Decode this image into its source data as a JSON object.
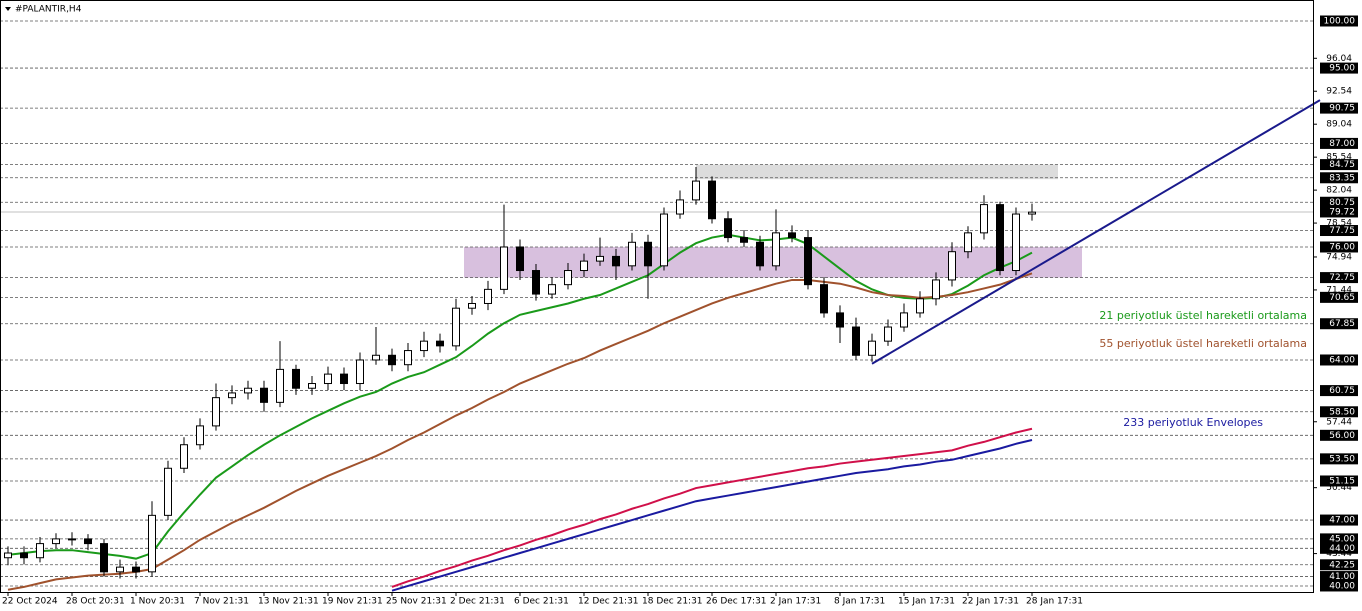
{
  "chart_data": {
    "type": "candlestick",
    "title": "#PALANTIR,H4",
    "categories": [
      "22 Oct 2024",
      null,
      null,
      null,
      "28 Oct 20:31",
      null,
      null,
      null,
      "1 Nov 20:31",
      null,
      null,
      null,
      "7 Nov 21:31",
      null,
      null,
      null,
      "13 Nov 21:31",
      null,
      null,
      null,
      "19 Nov 21:31",
      null,
      null,
      null,
      "25 Nov 21:31",
      null,
      null,
      null,
      "2 Dec 21:31",
      null,
      null,
      null,
      "6 Dec 21:31",
      null,
      null,
      null,
      "12 Dec 21:31",
      null,
      null,
      null,
      "18 Dec 21:31",
      null,
      null,
      null,
      "26 Dec 17:31",
      null,
      null,
      null,
      "2 Jan 17:31",
      null,
      null,
      null,
      "8 Jan 17:31",
      null,
      null,
      null,
      "15 Jan 17:31",
      null,
      null,
      null,
      "22 Jan 17:31",
      null,
      null,
      null,
      "28 Jan 17:31"
    ],
    "open": [
      43,
      43.5,
      43,
      44.5,
      45,
      45,
      44.5,
      41.5,
      42,
      41.5,
      47.5,
      52.5,
      55,
      57,
      60,
      60.5,
      61,
      59.5,
      63,
      61,
      61.5,
      62.5,
      61.5,
      64,
      64.5,
      63.5,
      65,
      66,
      65.5,
      69.5,
      70,
      71.5,
      76,
      73.5,
      71,
      72,
      73.5,
      74.5,
      75,
      74,
      76.5,
      74,
      79.5,
      81,
      83,
      79,
      77,
      76.5,
      74,
      77.5,
      77,
      72,
      69,
      67.5,
      64.5,
      66,
      67.5,
      69,
      70.5,
      72.5,
      75.5,
      77.5,
      80.5,
      73.5,
      79.5
    ],
    "high": [
      44.2,
      44.2,
      45.2,
      45.6,
      45.7,
      45.5,
      45,
      42.8,
      42.6,
      49,
      53.3,
      55.8,
      57.8,
      61.5,
      61.3,
      61.8,
      61.8,
      66,
      63.5,
      62.3,
      63.3,
      63.2,
      64.8,
      67.5,
      65.2,
      65.8,
      67,
      66.8,
      70.5,
      70.8,
      72.4,
      80.5,
      76.8,
      74.2,
      72.8,
      74.3,
      75.3,
      77,
      75.8,
      77.5,
      77.3,
      80.2,
      82,
      84.5,
      83.5,
      79.8,
      77.8,
      77.2,
      80,
      78.3,
      77.8,
      72.8,
      69.8,
      68.5,
      66.8,
      68.3,
      70,
      71.3,
      73.3,
      76.5,
      78.2,
      81.5,
      80.8,
      80.2,
      80.6
    ],
    "low": [
      42.2,
      42.3,
      42.5,
      44,
      44.3,
      43.8,
      41,
      40.8,
      40.8,
      41,
      47,
      52,
      54.5,
      56.5,
      59.3,
      59.8,
      58.5,
      59,
      60.3,
      60.3,
      60.8,
      60.8,
      60.8,
      63.5,
      62.8,
      62.8,
      64.3,
      64.8,
      65,
      68.8,
      69.3,
      71,
      72.5,
      70.3,
      70.5,
      71.5,
      72.8,
      74,
      72.5,
      73.5,
      70.5,
      73.5,
      79,
      80.5,
      78.5,
      76.5,
      76,
      73.5,
      73.5,
      76.5,
      71.5,
      68.5,
      65.8,
      64,
      63.8,
      65.5,
      67,
      68.5,
      69.8,
      71.8,
      74.8,
      76.8,
      73,
      73,
      78.8
    ],
    "close": [
      43.5,
      43,
      44.5,
      45,
      45,
      44.5,
      41.5,
      42,
      41.5,
      47.5,
      52.5,
      55,
      57,
      60,
      60.5,
      61,
      59.5,
      63,
      61,
      61.5,
      62.5,
      61.5,
      64,
      64.5,
      63.5,
      65,
      66,
      65.5,
      69.5,
      70,
      71.5,
      76,
      73.5,
      71,
      72,
      73.5,
      74.5,
      75,
      74,
      76.5,
      74,
      79.5,
      81,
      83,
      79,
      77,
      76.5,
      74,
      77.5,
      77,
      72,
      69,
      67.5,
      64.5,
      66,
      67.5,
      69,
      70.5,
      72.5,
      75.5,
      77.5,
      80.5,
      73.5,
      79.5,
      79.7
    ],
    "series": [
      {
        "name": "21 periyotluk üstel hareketli ortalama",
        "color": "#1a9a1a",
        "values": [
          43.3,
          43.5,
          43.7,
          43.8,
          43.8,
          43.6,
          43.4,
          43.2,
          42.9,
          43.5,
          45.8,
          47.8,
          49.7,
          51.5,
          52.7,
          53.9,
          55,
          56,
          56.9,
          57.8,
          58.6,
          59.4,
          60.1,
          60.6,
          61.5,
          62.2,
          62.7,
          63.5,
          64.3,
          65.5,
          66.8,
          67.9,
          68.8,
          69.2,
          69.6,
          70,
          70.5,
          70.9,
          71.6,
          72.3,
          73,
          74.2,
          75.4,
          76.4,
          77,
          77.3,
          77,
          76.7,
          76.8,
          77,
          76.3,
          75,
          73.7,
          72.4,
          71.5,
          70.9,
          70.6,
          70.5,
          70.6,
          71,
          71.9,
          73,
          73.8,
          74.5,
          75.4
        ]
      },
      {
        "name": "55 periyotluk üstel hareketli ortalama",
        "color": "#a0522d",
        "values": [
          39.6,
          39.9,
          40.3,
          40.7,
          40.9,
          41.1,
          41.2,
          41.3,
          41.5,
          41.8,
          42.8,
          43.8,
          44.9,
          45.8,
          46.7,
          47.5,
          48.3,
          49.2,
          50.1,
          50.9,
          51.7,
          52.4,
          53.1,
          53.8,
          54.6,
          55.5,
          56.3,
          57.2,
          58.1,
          58.9,
          59.8,
          60.6,
          61.5,
          62.2,
          62.9,
          63.6,
          64.2,
          65,
          65.7,
          66.4,
          67.1,
          67.9,
          68.6,
          69.3,
          70,
          70.6,
          71.1,
          71.6,
          72.1,
          72.5,
          72.5,
          72.3,
          72.1,
          71.7,
          71.2,
          70.9,
          70.8,
          70.6,
          70.7,
          70.9,
          71.2,
          71.6,
          72,
          72.6,
          73.2
        ]
      },
      {
        "name": "233 periyotluk Envelopes",
        "color": "#d0104a",
        "values": [
          null,
          null,
          null,
          null,
          null,
          null,
          null,
          null,
          null,
          null,
          null,
          null,
          null,
          null,
          null,
          null,
          null,
          null,
          null,
          null,
          null,
          null,
          null,
          null,
          39.9,
          40.5,
          41.0,
          41.6,
          42.1,
          42.7,
          43.2,
          43.8,
          44.3,
          44.9,
          45.4,
          46.0,
          46.5,
          47.1,
          47.6,
          48.2,
          48.7,
          49.3,
          49.8,
          50.4,
          50.7,
          51.0,
          51.3,
          51.6,
          51.9,
          52.2,
          52.5,
          52.7,
          53.0,
          53.2,
          53.4,
          53.6,
          53.8,
          54.0,
          54.2,
          54.4,
          54.9,
          55.3,
          55.8,
          56.3,
          56.7
        ]
      },
      {
        "color": "#1a1aa0",
        "values": [
          null,
          null,
          null,
          null,
          null,
          null,
          null,
          null,
          null,
          null,
          null,
          null,
          null,
          null,
          null,
          null,
          null,
          null,
          null,
          null,
          null,
          null,
          null,
          null,
          39.5,
          40.0,
          40.5,
          41.0,
          41.5,
          42.0,
          42.5,
          43.0,
          43.5,
          44.0,
          44.5,
          45.0,
          45.5,
          46.0,
          46.5,
          47.0,
          47.5,
          48.0,
          48.5,
          49.0,
          49.3,
          49.6,
          49.9,
          50.2,
          50.5,
          50.8,
          51.1,
          51.4,
          51.7,
          52.0,
          52.2,
          52.4,
          52.7,
          52.9,
          53.2,
          53.4,
          53.8,
          54.2,
          54.6,
          55.1,
          55.5
        ]
      }
    ],
    "zones": [
      {
        "values": [
          72.75,
          76
        ],
        "color": "#d8c0de"
      },
      {
        "values": [
          83.2,
          84.75
        ],
        "color": "#dcdcdc"
      }
    ],
    "trendline": {
      "values": [
        63.6,
        91.6
      ],
      "color": "#1a1a8c"
    },
    "current_price": 79.72,
    "ylim": [
      39.36,
      102.23
    ],
    "yticks": [
      96.04,
      92.54,
      89.04,
      85.54,
      82.04,
      78.54,
      74.94,
      71.44,
      57.44,
      50.44,
      43.44
    ],
    "levels": [
      {
        "value": 100,
        "label": "100.00"
      },
      {
        "value": 95,
        "label": "95.00"
      },
      {
        "value": 90.75,
        "label": "90.75"
      },
      {
        "value": 87,
        "label": "87.00"
      },
      {
        "value": 84.75,
        "label": "84.75"
      },
      {
        "value": 83.35,
        "label": "83.35"
      },
      {
        "value": 80.75,
        "label": "80.75"
      },
      {
        "value": 77.75,
        "label": "77.75"
      },
      {
        "value": 76,
        "label": "76.00"
      },
      {
        "value": 72.75,
        "label": "72.75"
      },
      {
        "value": 70.65,
        "label": "70.65"
      },
      {
        "value": 67.85,
        "label": "67.85"
      },
      {
        "value": 64,
        "label": "64.00"
      },
      {
        "value": 60.75,
        "label": "60.75"
      },
      {
        "value": 58.5,
        "label": "58.50"
      },
      {
        "value": 56,
        "label": "56.00"
      },
      {
        "value": 53.5,
        "label": "53.50"
      },
      {
        "value": 51.15,
        "label": "51.15"
      },
      {
        "value": 47,
        "label": "47.00"
      },
      {
        "value": 45,
        "label": "45.00"
      },
      {
        "value": 44,
        "label": "44.00"
      },
      {
        "value": 42.25,
        "label": "42.25"
      },
      {
        "value": 41,
        "label": "41.00"
      },
      {
        "value": 40,
        "label": "40.00"
      }
    ]
  }
}
